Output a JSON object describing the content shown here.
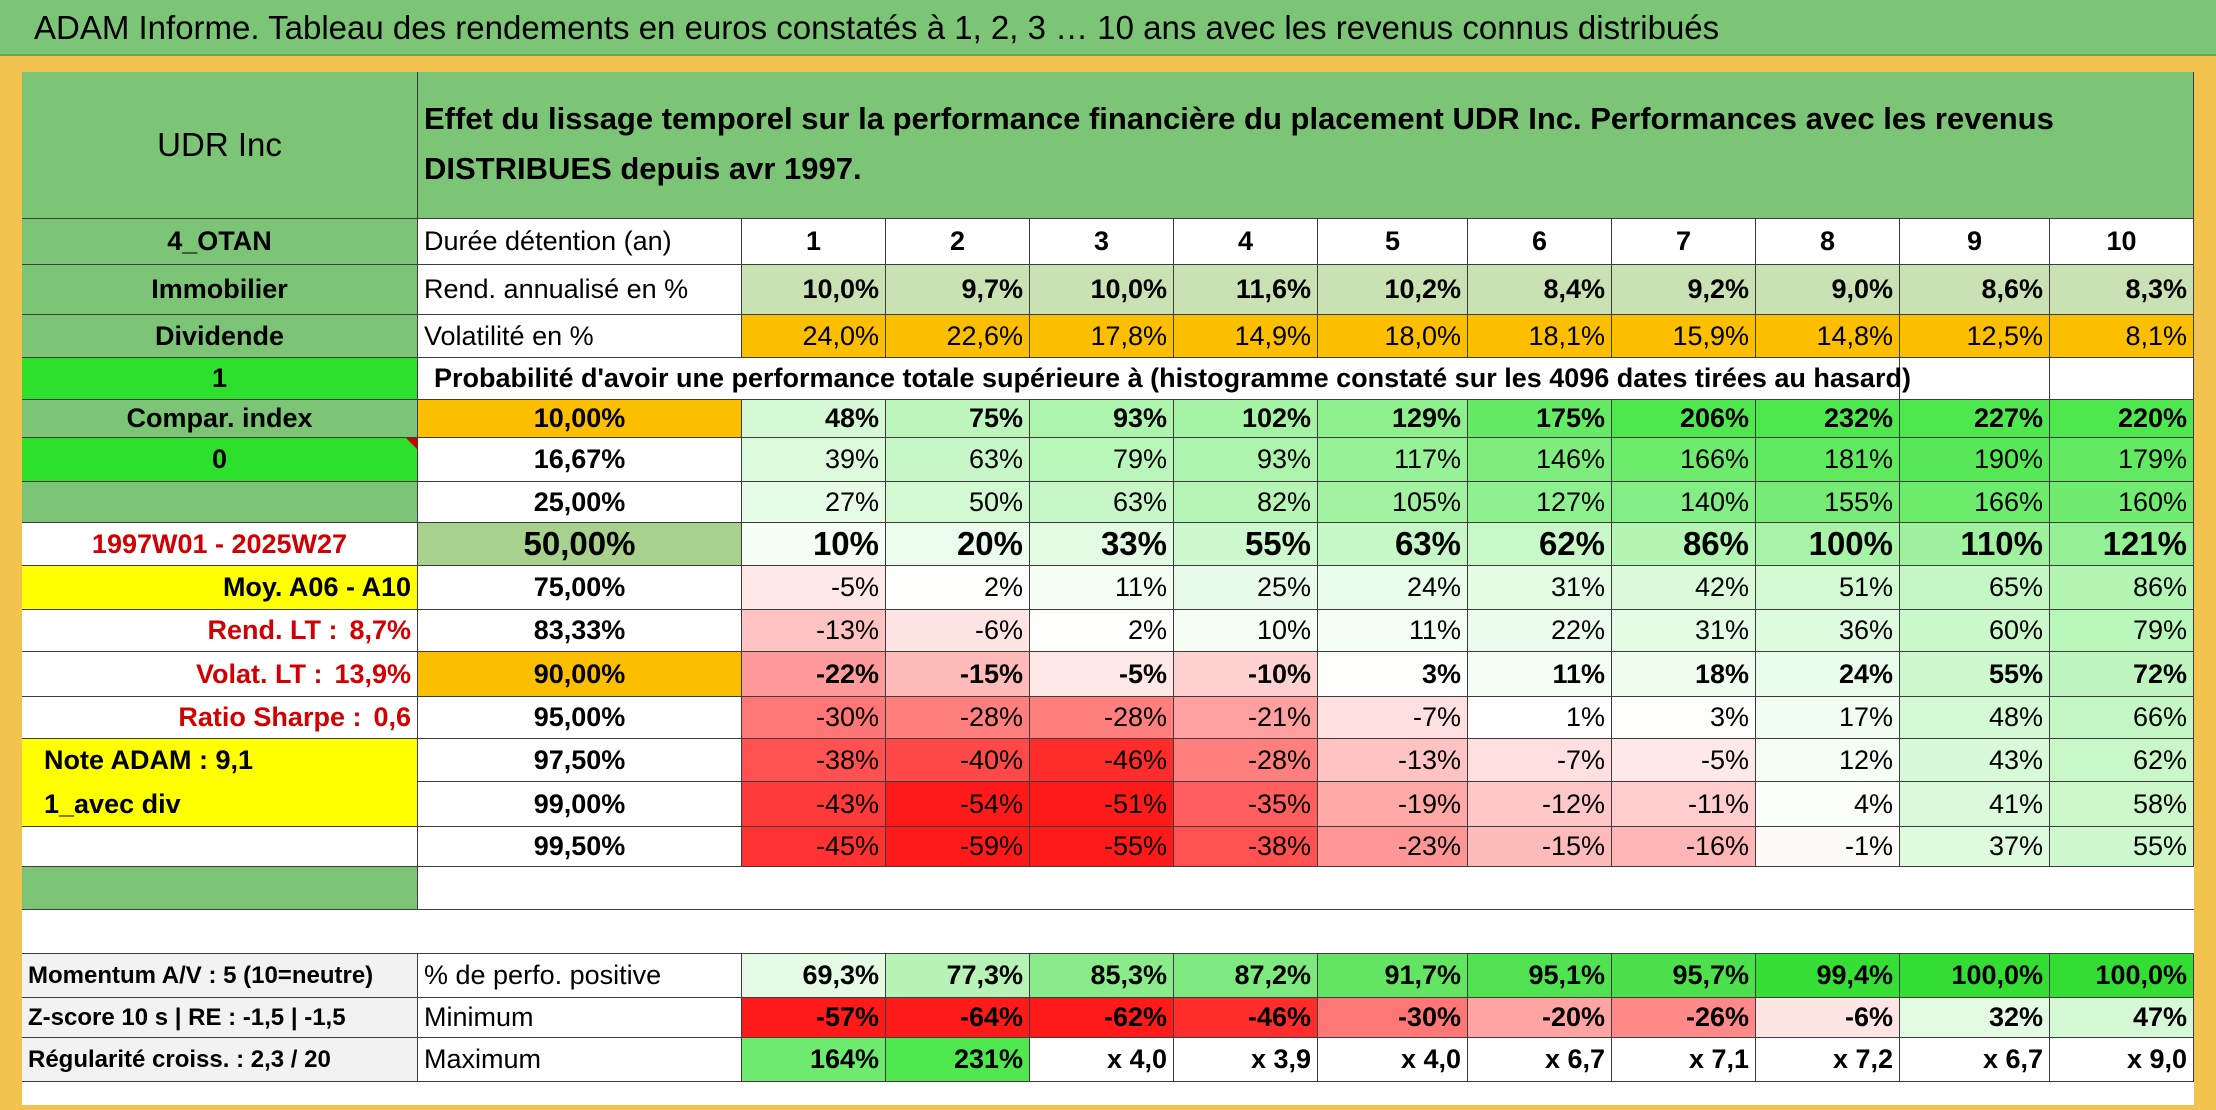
{
  "title": "ADAM Informe. Tableau des rendements en euros constatés à 1, 2, 3 … 10 ans avec les revenus connus distribués",
  "colors": {
    "banner": "#7cc576",
    "label_green": "#7cc576",
    "bright_green": "#2ce02c",
    "yellow": "#ffff00",
    "orange": "#fbbf00",
    "grey_green": "#a9d18e",
    "red_text": "#d20000"
  },
  "left": {
    "name": "UDR Inc",
    "code": "4_OTAN",
    "sector": "Immobilier",
    "type": "Dividende",
    "flag1": "1",
    "compar_index": "Compar. index",
    "flag0": "0",
    "period": "1997W01 - 2025W27",
    "moy": "Moy. A06 - A10",
    "rend_lt_label": "Rend. LT :",
    "rend_lt_value": "8,7%",
    "volat_lt_label": "Volat. LT :",
    "volat_lt_value": "13,9%",
    "sharpe_label": "Ratio Sharpe :",
    "sharpe_value": "0,6",
    "note": "Note ADAM : 9,1",
    "avec_div": "1_avec div",
    "momentum": "Momentum A/V : 5 (10=neutre)",
    "zscore": "Z-score 10 s | RE : -1,5 | -1,5",
    "regularite": "Régularité croiss. : 2,3 / 20"
  },
  "header_text": "Effet du lissage temporel sur la performance financière du placement UDR Inc. Performances avec les revenus DISTRIBUES depuis avr 1997.",
  "duration_label": "Durée détention (an)",
  "years": [
    "1",
    "2",
    "3",
    "4",
    "5",
    "6",
    "7",
    "8",
    "9",
    "10"
  ],
  "rend_label": "Rend. annualisé en %",
  "rend": [
    "10,0%",
    "9,7%",
    "10,0%",
    "11,6%",
    "10,2%",
    "8,4%",
    "9,2%",
    "9,0%",
    "8,6%",
    "8,3%"
  ],
  "volat_label": "Volatilité en %",
  "volat": [
    "24,0%",
    "22,6%",
    "17,8%",
    "14,9%",
    "18,0%",
    "18,1%",
    "15,9%",
    "14,8%",
    "12,5%",
    "8,1%"
  ],
  "prob_caption": "Probabilité d'avoir une performance totale supérieure à (histogramme constaté sur les 4096 dates tirées au hasard)",
  "prob_rows": [
    {
      "level": "10,00%",
      "values": [
        "48%",
        "75%",
        "93%",
        "102%",
        "129%",
        "175%",
        "206%",
        "232%",
        "227%",
        "220%"
      ]
    },
    {
      "level": "16,67%",
      "values": [
        "39%",
        "63%",
        "79%",
        "93%",
        "117%",
        "146%",
        "166%",
        "181%",
        "190%",
        "179%"
      ]
    },
    {
      "level": "25,00%",
      "values": [
        "27%",
        "50%",
        "63%",
        "82%",
        "105%",
        "127%",
        "140%",
        "155%",
        "166%",
        "160%"
      ]
    },
    {
      "level": "50,00%",
      "values": [
        "10%",
        "20%",
        "33%",
        "55%",
        "63%",
        "62%",
        "86%",
        "100%",
        "110%",
        "121%"
      ]
    },
    {
      "level": "75,00%",
      "values": [
        "-5%",
        "2%",
        "11%",
        "25%",
        "24%",
        "31%",
        "42%",
        "51%",
        "65%",
        "86%"
      ]
    },
    {
      "level": "83,33%",
      "values": [
        "-13%",
        "-6%",
        "2%",
        "10%",
        "11%",
        "22%",
        "31%",
        "36%",
        "60%",
        "79%"
      ]
    },
    {
      "level": "90,00%",
      "values": [
        "-22%",
        "-15%",
        "-5%",
        "-10%",
        "3%",
        "11%",
        "18%",
        "24%",
        "55%",
        "72%"
      ]
    },
    {
      "level": "95,00%",
      "values": [
        "-30%",
        "-28%",
        "-28%",
        "-21%",
        "-7%",
        "1%",
        "3%",
        "17%",
        "48%",
        "66%"
      ]
    },
    {
      "level": "97,50%",
      "values": [
        "-38%",
        "-40%",
        "-46%",
        "-28%",
        "-13%",
        "-7%",
        "-5%",
        "12%",
        "43%",
        "62%"
      ]
    },
    {
      "level": "99,00%",
      "values": [
        "-43%",
        "-54%",
        "-51%",
        "-35%",
        "-19%",
        "-12%",
        "-11%",
        "4%",
        "41%",
        "58%"
      ]
    },
    {
      "level": "99,50%",
      "values": [
        "-45%",
        "-59%",
        "-55%",
        "-38%",
        "-23%",
        "-15%",
        "-16%",
        "-1%",
        "37%",
        "55%"
      ]
    }
  ],
  "pos_label": "% de perfo. positive",
  "pos": [
    "69,3%",
    "77,3%",
    "85,3%",
    "87,2%",
    "91,7%",
    "95,1%",
    "95,7%",
    "99,4%",
    "100,0%",
    "100,0%"
  ],
  "min_label": "Minimum",
  "min": [
    "-57%",
    "-64%",
    "-62%",
    "-46%",
    "-30%",
    "-20%",
    "-26%",
    "-6%",
    "32%",
    "47%"
  ],
  "max_label": "Maximum",
  "max": [
    "164%",
    "231%",
    "x 4,0",
    "x 3,9",
    "x 4,0",
    "x 6,7",
    "x 7,1",
    "x 7,2",
    "x 6,7",
    "x 9,0"
  ]
}
